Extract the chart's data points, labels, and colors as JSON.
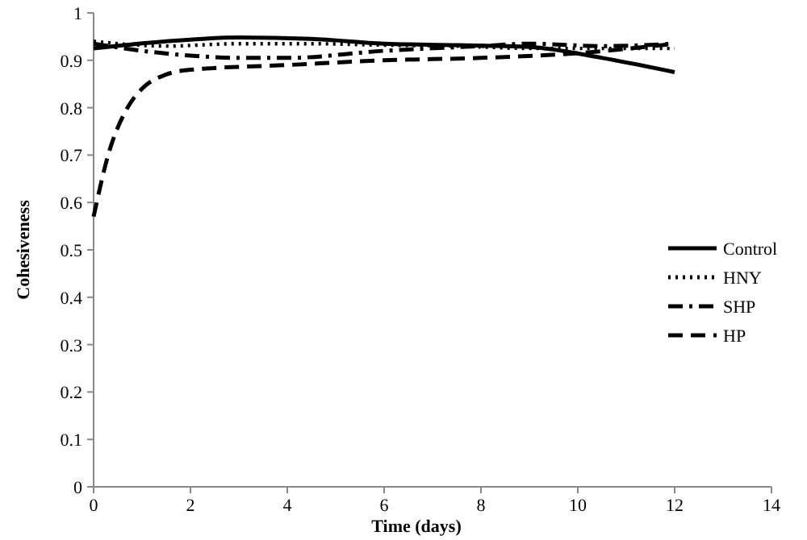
{
  "chart_data": {
    "type": "line",
    "xlabel": "Time (days)",
    "ylabel": "Cohesiveness",
    "xlim": [
      0,
      14
    ],
    "xticks": [
      0,
      2,
      4,
      6,
      8,
      10,
      12,
      14
    ],
    "ylim": [
      0,
      1
    ],
    "yticks": [
      0,
      0.1,
      0.2,
      0.3,
      0.4,
      0.5,
      0.6,
      0.7,
      0.8,
      0.9,
      1
    ],
    "legend": "right",
    "series": [
      {
        "name": "Control",
        "color": "#000000",
        "line_style": "solid",
        "x": [
          0,
          1.5,
          3,
          4.5,
          6,
          7.5,
          9,
          10.5,
          12
        ],
        "values": [
          0.925,
          0.94,
          0.948,
          0.945,
          0.935,
          0.932,
          0.928,
          0.905,
          0.875
        ]
      },
      {
        "name": "HNY",
        "color": "#000000",
        "line_style": "dotted",
        "x": [
          0,
          1.5,
          3,
          4.5,
          6,
          7.5,
          9,
          10.5,
          12
        ],
        "values": [
          0.94,
          0.93,
          0.935,
          0.935,
          0.932,
          0.93,
          0.925,
          0.925,
          0.925
        ]
      },
      {
        "name": "SHP",
        "color": "#000000",
        "line_style": "dashdot",
        "x": [
          0,
          1,
          2,
          3,
          4,
          6,
          8,
          9,
          10.5,
          12
        ],
        "values": [
          0.935,
          0.92,
          0.91,
          0.905,
          0.905,
          0.92,
          0.93,
          0.935,
          0.93,
          0.935
        ]
      },
      {
        "name": "HP",
        "color": "#000000",
        "line_style": "dashed",
        "x": [
          0,
          0.3,
          0.7,
          1,
          1.5,
          2,
          4,
          6,
          8,
          10,
          12
        ],
        "values": [
          0.57,
          0.7,
          0.8,
          0.84,
          0.87,
          0.88,
          0.89,
          0.9,
          0.905,
          0.915,
          0.935
        ]
      }
    ]
  }
}
